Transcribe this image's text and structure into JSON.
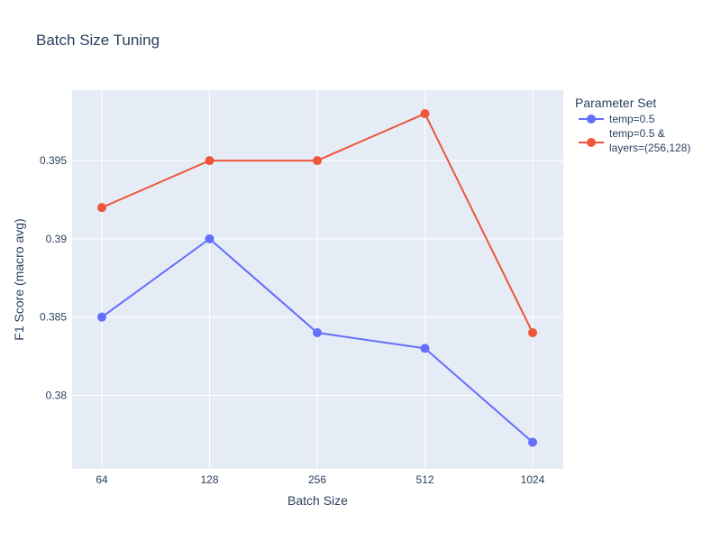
{
  "chart_data": {
    "type": "line",
    "title": "Batch Size Tuning",
    "xlabel": "Batch Size",
    "ylabel": "F1 Score (macro avg)",
    "categories": [
      "64",
      "128",
      "256",
      "512",
      "1024"
    ],
    "ylim": [
      0.3753,
      0.3995
    ],
    "yticks": [
      0.38,
      0.385,
      0.39,
      0.395
    ],
    "ytick_labels": [
      "0.38",
      "0.385",
      "0.39",
      "0.395"
    ],
    "grid": true,
    "legend": {
      "title": "Parameter Set",
      "placement": "right",
      "entries": [
        "temp=0.5",
        "temp=0.5 & layers=(256,128)"
      ]
    },
    "series": [
      {
        "name": "temp=0.5",
        "color": "#636efa",
        "values": [
          0.385,
          0.39,
          0.384,
          0.383,
          0.377
        ]
      },
      {
        "name": "temp=0.5 & layers=(256,128)",
        "color": "#ef553b",
        "values": [
          0.392,
          0.395,
          0.395,
          0.398,
          0.384
        ]
      }
    ],
    "plot_bgcolor": "#e5ecf6"
  }
}
